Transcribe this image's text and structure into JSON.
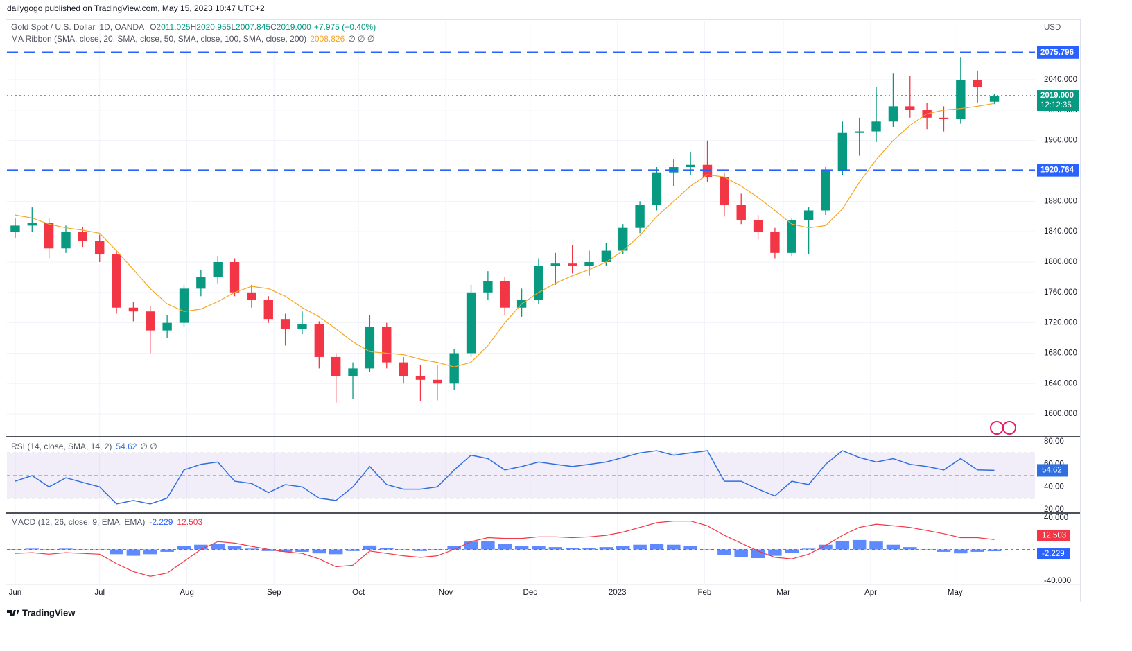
{
  "header": {
    "publisher": "dailygogo published on TradingView.com, May 15, 2023 10:47 UTC+2",
    "footer": "TradingView"
  },
  "chart_data": [
    {
      "type": "candlestick",
      "title": "Gold Spot / U.S. Dollar, 1D, OANDA",
      "ohlc_keys": [
        "O",
        "H",
        "L",
        "C"
      ],
      "change_label": "+7.975 (+0.40%)",
      "currency": "USD",
      "up_color": "#089981",
      "down_color": "#f23645",
      "grid": true,
      "candles": [
        [
          1840,
          1858,
          1832,
          1848
        ],
        [
          1848,
          1872,
          1840,
          1852
        ],
        [
          1852,
          1858,
          1805,
          1818
        ],
        [
          1818,
          1848,
          1812,
          1840
        ],
        [
          1840,
          1846,
          1820,
          1828
        ],
        [
          1828,
          1836,
          1800,
          1810
        ],
        [
          1810,
          1815,
          1732,
          1740
        ],
        [
          1740,
          1748,
          1722,
          1735
        ],
        [
          1735,
          1742,
          1680,
          1710
        ],
        [
          1710,
          1730,
          1700,
          1720
        ],
        [
          1720,
          1770,
          1715,
          1765
        ],
        [
          1765,
          1790,
          1755,
          1780
        ],
        [
          1780,
          1808,
          1772,
          1800
        ],
        [
          1800,
          1805,
          1755,
          1760
        ],
        [
          1760,
          1770,
          1740,
          1750
        ],
        [
          1750,
          1755,
          1720,
          1725
        ],
        [
          1725,
          1732,
          1690,
          1712
        ],
        [
          1712,
          1735,
          1705,
          1718
        ],
        [
          1718,
          1722,
          1660,
          1675
        ],
        [
          1675,
          1680,
          1615,
          1650
        ],
        [
          1650,
          1668,
          1620,
          1660
        ],
        [
          1660,
          1730,
          1655,
          1715
        ],
        [
          1715,
          1720,
          1660,
          1668
        ],
        [
          1668,
          1675,
          1640,
          1650
        ],
        [
          1650,
          1665,
          1617,
          1645
        ],
        [
          1645,
          1665,
          1618,
          1640
        ],
        [
          1640,
          1685,
          1632,
          1680
        ],
        [
          1680,
          1770,
          1675,
          1760
        ],
        [
          1760,
          1788,
          1750,
          1775
        ],
        [
          1775,
          1780,
          1730,
          1740
        ],
        [
          1740,
          1765,
          1728,
          1750
        ],
        [
          1750,
          1805,
          1745,
          1795
        ],
        [
          1795,
          1812,
          1770,
          1798
        ],
        [
          1798,
          1822,
          1785,
          1795
        ],
        [
          1795,
          1815,
          1782,
          1800
        ],
        [
          1800,
          1825,
          1795,
          1815
        ],
        [
          1815,
          1850,
          1810,
          1845
        ],
        [
          1845,
          1880,
          1838,
          1875
        ],
        [
          1875,
          1925,
          1868,
          1918
        ],
        [
          1918,
          1935,
          1900,
          1925
        ],
        [
          1925,
          1945,
          1915,
          1928
        ],
        [
          1928,
          1960,
          1905,
          1912
        ],
        [
          1912,
          1918,
          1860,
          1875
        ],
        [
          1875,
          1890,
          1850,
          1855
        ],
        [
          1855,
          1862,
          1830,
          1840
        ],
        [
          1840,
          1845,
          1805,
          1812
        ],
        [
          1812,
          1858,
          1808,
          1855
        ],
        [
          1855,
          1872,
          1810,
          1868
        ],
        [
          1868,
          1925,
          1862,
          1920
        ],
        [
          1920,
          1985,
          1915,
          1970
        ],
        [
          1970,
          1990,
          1940,
          1972
        ],
        [
          1972,
          2030,
          1958,
          1985
        ],
        [
          1985,
          2048,
          1978,
          2005
        ],
        [
          2005,
          2045,
          1990,
          2000
        ],
        [
          2000,
          2010,
          1975,
          1990
        ],
        [
          1990,
          2005,
          1972,
          1988
        ],
        [
          1988,
          2070,
          1982,
          2040
        ],
        [
          2040,
          2052,
          2010,
          2030
        ],
        [
          2011.025,
          2020.955,
          2007.845,
          2019
        ]
      ],
      "series": [
        {
          "name": "MA Ribbon (SMA, close, 20, SMA, close, 50, SMA, close, 100, SMA, close, 200)",
          "color": "#f5a623",
          "values": [
            1862,
            1858,
            1850,
            1845,
            1842,
            1838,
            1815,
            1790,
            1765,
            1745,
            1735,
            1738,
            1748,
            1760,
            1768,
            1765,
            1755,
            1740,
            1728,
            1712,
            1695,
            1682,
            1680,
            1678,
            1672,
            1668,
            1662,
            1668,
            1690,
            1720,
            1745,
            1760,
            1772,
            1782,
            1790,
            1800,
            1815,
            1835,
            1860,
            1880,
            1900,
            1915,
            1912,
            1900,
            1885,
            1868,
            1850,
            1845,
            1848,
            1870,
            1905,
            1935,
            1960,
            1980,
            1995,
            2000,
            2002,
            2005,
            2008.826
          ]
        }
      ],
      "na_marks": "∅ ∅ ∅",
      "xlim": [
        -0.49,
        60.4
      ],
      "xticks": [
        {
          "value": 0,
          "label": "Jun"
        },
        {
          "value": 5,
          "label": "Jul"
        },
        {
          "value": 10.17,
          "label": "Aug"
        },
        {
          "value": 15.33,
          "label": "Sep"
        },
        {
          "value": 20.33,
          "label": "Oct"
        },
        {
          "value": 25.5,
          "label": "Nov"
        },
        {
          "value": 30.5,
          "label": "Dec"
        },
        {
          "value": 35.67,
          "label": "2023"
        },
        {
          "value": 40.83,
          "label": "Feb"
        },
        {
          "value": 45.5,
          "label": "Mar"
        },
        {
          "value": 50.67,
          "label": "Apr"
        },
        {
          "value": 55.67,
          "label": "May"
        }
      ],
      "ylim": [
        1570,
        2117.6
      ],
      "yticks": [
        {
          "value": 1600,
          "label": "1600.000"
        },
        {
          "value": 1640,
          "label": "1640.000"
        },
        {
          "value": 1680,
          "label": "1680.000"
        },
        {
          "value": 1720,
          "label": "1720.000"
        },
        {
          "value": 1760,
          "label": "1760.000"
        },
        {
          "value": 1800,
          "label": "1800.000"
        },
        {
          "value": 1840,
          "label": "1840.000"
        },
        {
          "value": 1880,
          "label": "1880.000"
        },
        {
          "value": 1920,
          "label": "1920.000"
        },
        {
          "value": 1960,
          "label": "1960.000"
        },
        {
          "value": 2000,
          "label": "2000.000"
        },
        {
          "value": 2040,
          "label": "2040.000"
        }
      ],
      "levels": [
        2075.796,
        1920.764
      ],
      "level_color": "#2962ff",
      "last_price": {
        "value": 2019,
        "label": "2019.000",
        "countdown": "12:12:35"
      }
    },
    {
      "type": "line",
      "title": "RSI (14, close, SMA, 14, 2)",
      "na_marks": "∅ ∅",
      "band_color": "#7e57c2",
      "series": [
        {
          "color": "#2f6fe0",
          "values": [
            45,
            50,
            40,
            48,
            44,
            40,
            25,
            28,
            25,
            30,
            55,
            60,
            62,
            45,
            43,
            35,
            42,
            40,
            30,
            28,
            40,
            58,
            42,
            38,
            38,
            40,
            55,
            68,
            65,
            55,
            58,
            62,
            60,
            58,
            60,
            62,
            66,
            70,
            72,
            68,
            70,
            72,
            45,
            45,
            38,
            32,
            45,
            42,
            60,
            72,
            66,
            62,
            65,
            60,
            58,
            55,
            65,
            55,
            54.62
          ]
        }
      ],
      "bands": [
        70,
        50,
        30
      ],
      "ylim": [
        16.9,
        84.3
      ],
      "yticks": [
        {
          "value": 80,
          "label": "80.00"
        },
        {
          "value": 60,
          "label": "60.00"
        },
        {
          "value": 40,
          "label": "40.00"
        },
        {
          "value": 20,
          "label": "20.00"
        }
      ]
    },
    {
      "type": "macd",
      "title": "MACD (12, 26, close, 9, EMA, EMA)",
      "series": [
        {
          "kind": "histogram",
          "color": "#2962ff",
          "values": [
            -1,
            1,
            -1,
            1,
            0,
            -1,
            -6,
            -8,
            -6,
            -3,
            4,
            6,
            7,
            4,
            1,
            -2,
            -3,
            -3,
            -5,
            -6,
            -2,
            5,
            2,
            -1,
            -2,
            0,
            4,
            10,
            11,
            7,
            4,
            4,
            3,
            2,
            2,
            3,
            4,
            6,
            7,
            6,
            4,
            0,
            -7,
            -10,
            -11,
            -8,
            -4,
            1,
            6,
            11,
            12,
            10,
            6,
            3,
            -1,
            -3,
            -5,
            -3,
            -2.229
          ]
        },
        {
          "kind": "line",
          "color": "#f23645",
          "values": [
            -5,
            -4,
            -6,
            -4,
            -5,
            -6,
            -18,
            -28,
            -34,
            -30,
            -15,
            0,
            10,
            8,
            4,
            0,
            -3,
            -5,
            -12,
            -22,
            -20,
            -2,
            -5,
            -8,
            -10,
            -8,
            0,
            10,
            15,
            14,
            14,
            16,
            16,
            15,
            16,
            18,
            22,
            28,
            34,
            36,
            36,
            30,
            18,
            8,
            -2,
            -10,
            -12,
            -6,
            5,
            18,
            28,
            32,
            30,
            28,
            24,
            20,
            15,
            15,
            12.503
          ]
        }
      ],
      "ylim": [
        -44.4,
        46.2
      ],
      "yticks": [
        {
          "value": 40,
          "label": "40.000"
        },
        {
          "value": -40,
          "label": "-40.000"
        }
      ]
    }
  ]
}
